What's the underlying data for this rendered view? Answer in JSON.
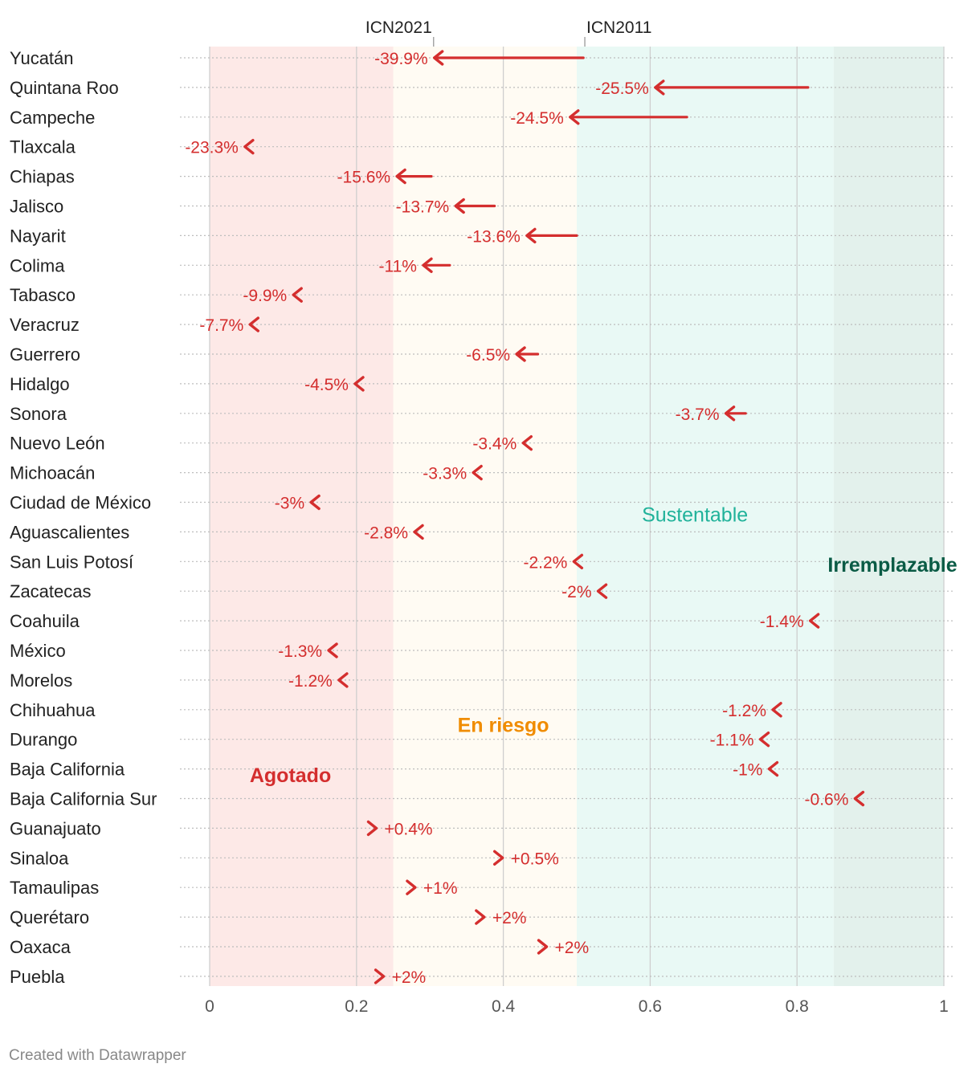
{
  "credit": "Created with Datawrapper",
  "colors": {
    "arrow": "#d42e2e",
    "zone_agotado": "#fde9e7",
    "zone_riesgo": "#fffbf3",
    "zone_sustentable": "#e9f9f5",
    "zone_irremplazable": "#e3f1ec",
    "label_agotado": "#d42e2e",
    "label_riesgo": "#f08c00",
    "label_sustentable": "#20b29a",
    "label_irremplazable": "#0a5b45"
  },
  "chart_data": {
    "type": "arrow",
    "xlim": [
      0,
      1
    ],
    "xticks": [
      0,
      0.2,
      0.4,
      0.6,
      0.8,
      1
    ],
    "xtick_labels": [
      "0",
      "0.2",
      "0.4",
      "0.6",
      "0.8",
      "1"
    ],
    "legend": {
      "start_label": "ICN2011",
      "end_label": "ICN2021",
      "start_ref": 0.511,
      "end_ref": 0.305
    },
    "zones": [
      {
        "name": "Agotado",
        "from": 0,
        "to": 0.25,
        "label_x": 0.11,
        "label_row": 24.2,
        "color_key": "zone_agotado",
        "text_color_key": "label_agotado",
        "bold": true
      },
      {
        "name": "En riesgo",
        "from": 0.25,
        "to": 0.5,
        "label_x": 0.4,
        "label_row": 22.5,
        "color_key": "zone_riesgo",
        "text_color_key": "label_riesgo",
        "bold": true
      },
      {
        "name": "Sustentable",
        "from": 0.5,
        "to": 0.85,
        "label_x": 0.661,
        "label_row": 15.4,
        "color_key": "zone_sustentable",
        "text_color_key": "label_sustentable",
        "bold": false
      },
      {
        "name": "Irremplazable",
        "from": 0.85,
        "to": 1,
        "label_x": 0.93,
        "label_row": 17.1,
        "color_key": "zone_irremplazable",
        "text_color_key": "label_irremplazable",
        "bold": true
      }
    ],
    "categories": [
      "Yucatán",
      "Quintana Roo",
      "Campeche",
      "Tlaxcala",
      "Chiapas",
      "Jalisco",
      "Nayarit",
      "Colima",
      "Tabasco",
      "Veracruz",
      "Guerrero",
      "Hidalgo",
      "Sonora",
      "Nuevo León",
      "Michoacán",
      "Ciudad de México",
      "Aguascalientes",
      "San Luis Potosí",
      "Zacatecas",
      "Coahuila",
      "México",
      "Morelos",
      "Chihuahua",
      "Durango",
      "Baja California",
      "Baja California Sur",
      "Guanajuato",
      "Sinaloa",
      "Tamaulipas",
      "Querétaro",
      "Oaxaca",
      "Puebla"
    ],
    "icn2011": [
      0.509,
      0.815,
      0.65,
      0.062,
      0.302,
      0.388,
      0.5,
      0.327,
      0.126,
      0.06,
      0.447,
      0.208,
      0.73,
      0.442,
      0.371,
      0.142,
      0.287,
      0.507,
      0.54,
      0.83,
      0.164,
      0.178,
      0.776,
      0.758,
      0.77,
      0.884,
      0.226,
      0.397,
      0.277,
      0.367,
      0.45,
      0.232
    ],
    "icn2021": [
      0.306,
      0.607,
      0.491,
      0.048,
      0.255,
      0.335,
      0.432,
      0.291,
      0.114,
      0.055,
      0.418,
      0.198,
      0.703,
      0.427,
      0.359,
      0.138,
      0.279,
      0.496,
      0.529,
      0.818,
      0.162,
      0.176,
      0.767,
      0.75,
      0.762,
      0.879,
      0.227,
      0.399,
      0.28,
      0.374,
      0.459,
      0.237
    ],
    "change_labels": [
      "-39.9%",
      "-25.5%",
      "-24.5%",
      "-23.3%",
      "-15.6%",
      "-13.7%",
      "-13.6%",
      "-11%",
      "-9.9%",
      "-7.7%",
      "-6.5%",
      "-4.5%",
      "-3.7%",
      "-3.4%",
      "-3.3%",
      "-3%",
      "-2.8%",
      "-2.2%",
      "-2%",
      "-1.4%",
      "-1.3%",
      "-1.2%",
      "-1.2%",
      "-1.1%",
      "-1%",
      "-0.6%",
      "+0.4%",
      "+0.5%",
      "+1%",
      "+2%",
      "+2%",
      "+2%"
    ]
  }
}
